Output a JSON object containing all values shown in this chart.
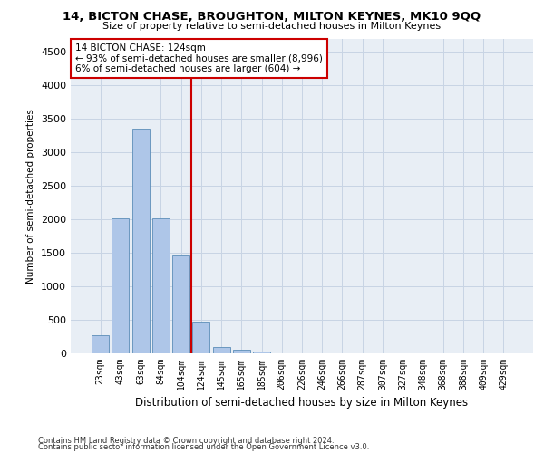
{
  "title": "14, BICTON CHASE, BROUGHTON, MILTON KEYNES, MK10 9QQ",
  "subtitle": "Size of property relative to semi-detached houses in Milton Keynes",
  "xlabel": "Distribution of semi-detached houses by size in Milton Keynes",
  "ylabel": "Number of semi-detached properties",
  "categories": [
    "23sqm",
    "43sqm",
    "63sqm",
    "84sqm",
    "104sqm",
    "124sqm",
    "145sqm",
    "165sqm",
    "185sqm",
    "206sqm",
    "226sqm",
    "246sqm",
    "266sqm",
    "287sqm",
    "307sqm",
    "327sqm",
    "348sqm",
    "368sqm",
    "388sqm",
    "409sqm",
    "429sqm"
  ],
  "values": [
    270,
    2020,
    3360,
    2020,
    1460,
    480,
    100,
    55,
    30,
    0,
    0,
    0,
    0,
    0,
    0,
    0,
    0,
    0,
    0,
    0,
    0
  ],
  "bar_color": "#aec6e8",
  "bar_edge_color": "#5b8db8",
  "highlight_line_color": "#cc0000",
  "annotation_text": "14 BICTON CHASE: 124sqm\n← 93% of semi-detached houses are smaller (8,996)\n6% of semi-detached houses are larger (604) →",
  "annotation_box_color": "#ffffff",
  "annotation_box_edge": "#cc0000",
  "ylim": [
    0,
    4700
  ],
  "yticks": [
    0,
    500,
    1000,
    1500,
    2000,
    2500,
    3000,
    3500,
    4000,
    4500
  ],
  "footer_line1": "Contains HM Land Registry data © Crown copyright and database right 2024.",
  "footer_line2": "Contains public sector information licensed under the Open Government Licence v3.0.",
  "background_color": "#ffffff",
  "plot_bg_color": "#e8eef5",
  "grid_color": "#c8d4e4"
}
